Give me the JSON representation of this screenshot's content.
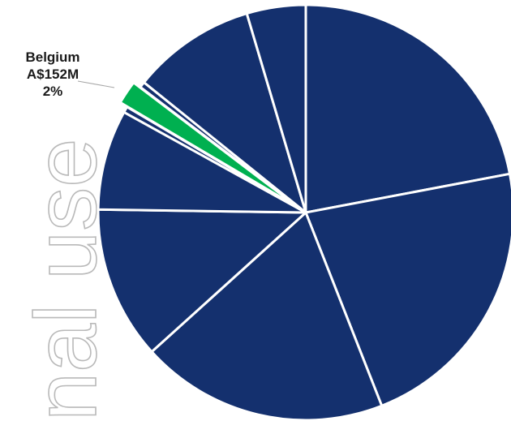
{
  "chart_data": {
    "type": "pie",
    "colors": {
      "default": "#14306e",
      "highlight": "#00b050",
      "separator": "#ffffff",
      "watermark": "#b9b9b9"
    },
    "watermark_text": "nal use",
    "slices": [
      {
        "value": 24,
        "highlight": false
      },
      {
        "value": 24,
        "highlight": false
      },
      {
        "value": 21,
        "highlight": false
      },
      {
        "value": 13,
        "highlight": false
      },
      {
        "value": 8.5,
        "highlight": false
      },
      {
        "value": 0.5,
        "highlight": false
      },
      {
        "value": 2,
        "highlight": true,
        "label": "Belgium",
        "amount": "A$152M",
        "percent": "2%"
      },
      {
        "value": 0.5,
        "highlight": false
      },
      {
        "value": 10.5,
        "highlight": false
      },
      {
        "value": 5,
        "highlight": false
      }
    ]
  }
}
